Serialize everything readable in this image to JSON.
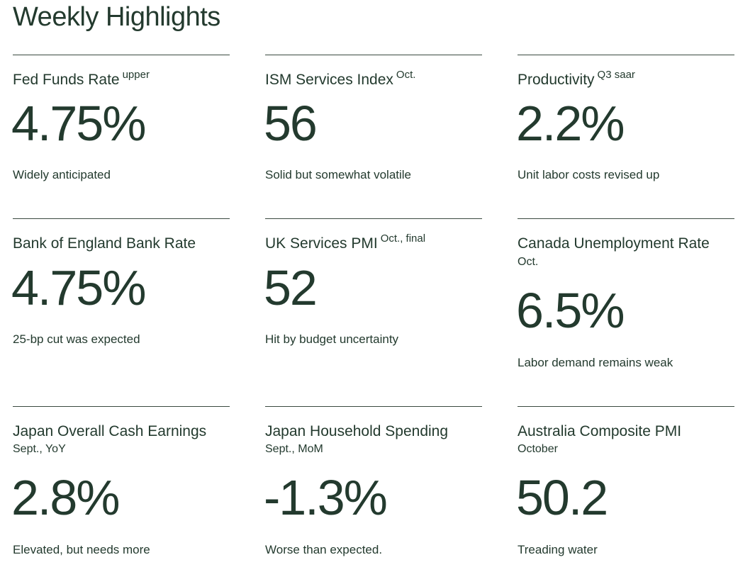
{
  "page": {
    "title": "Weekly Highlights"
  },
  "cards": [
    {
      "label": "Fed Funds Rate",
      "qualifier": "upper",
      "value": "4.75%",
      "note": "Widely anticipated"
    },
    {
      "label": "ISM Services Index",
      "qualifier": "Oct.",
      "value": "56",
      "note": "Solid but somewhat volatile"
    },
    {
      "label": "Productivity",
      "qualifier": "Q3 saar",
      "value": "2.2%",
      "note": "Unit labor costs revised up"
    },
    {
      "label": "Bank of England Bank Rate",
      "value": "4.75%",
      "note": "25-bp cut was expected"
    },
    {
      "label": "UK Services PMI",
      "qualifier": "Oct., final",
      "value": "52",
      "note": "Hit by budget uncertainty"
    },
    {
      "label": "Canada Unemployment Rate",
      "subtitle": "Oct.",
      "value": "6.5%",
      "note": "Labor demand remains weak"
    },
    {
      "label": "Japan Overall Cash Earnings",
      "subtitle": "Sept., YoY",
      "value": "2.8%",
      "note": "Elevated, but needs more"
    },
    {
      "label": "Japan Household Spending",
      "subtitle": "Sept., MoM",
      "value": "-1.3%",
      "note": "Worse than expected."
    },
    {
      "label": "Australia Composite PMI",
      "subtitle": "October",
      "value": "50.2",
      "note": "Treading water"
    }
  ]
}
